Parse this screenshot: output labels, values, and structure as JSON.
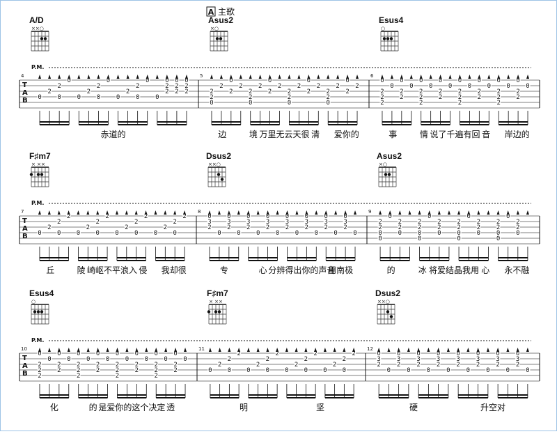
{
  "header": {
    "section": "A",
    "title": "主歌"
  },
  "tab_clef": [
    "T",
    "A",
    "B"
  ],
  "palm_mute": "P.M.",
  "systems": [
    {
      "chords": [
        {
          "name": "A/D",
          "top": "××○",
          "dots": [
            [
              3,
              2
            ],
            [
              4,
              2
            ]
          ]
        },
        {
          "name": "Asus2",
          "top": "×○",
          "dots": [
            [
              2,
              2
            ],
            [
              3,
              2
            ]
          ]
        },
        {
          "name": "Esus4",
          "top": "○",
          "dots": [
            [
              1,
              2
            ],
            [
              2,
              2
            ],
            [
              3,
              2
            ]
          ]
        }
      ],
      "measures": [
        {
          "number": "4",
          "strings": [
            "   0   0   0 000",
            "  2   2   2  222",
            " 2   2   2   222",
            "0 0 0 0 0 0 0   "
          ],
          "lyrics": [
            "赤道的"
          ]
        },
        {
          "number": "5",
          "strings": [
            "  0   0   0   0 ",
            " 2 2 2 2 2 2 2 2",
            "2 2 2 2 2 2 2 2 ",
            "2   2   2   2   ",
            "0   0   0   0   "
          ],
          "lyrics": [
            "边",
            "境",
            "万里无云天很",
            "清",
            "爱你的"
          ]
        },
        {
          "number": "6",
          "strings": [
            "0 0 0 0 0 0 0 0 ",
            " 0 0 0 0 0 0 0 0",
            "2 2 2 2 2 2 2 2 ",
            "2 2 2 2 2 2 2 2 ",
            "2   2   2   2   "
          ],
          "lyrics": [
            "事",
            "情",
            "说了千遍有回",
            "音",
            "岸边的"
          ]
        }
      ]
    },
    {
      "chords": [
        {
          "name": "F♯m7",
          "top": "× ××",
          "dots": [
            [
              0,
              2
            ],
            [
              2,
              2
            ],
            [
              3,
              2
            ]
          ]
        },
        {
          "name": "Dsus2",
          "top": "××○",
          "dots": [
            [
              3,
              2
            ],
            [
              4,
              3
            ]
          ]
        },
        {
          "name": "Asus2",
          "top": "×○",
          "dots": [
            [
              2,
              2
            ],
            [
              3,
              2
            ]
          ]
        }
      ],
      "measures": [
        {
          "number": "7",
          "strings": [
            "   2   2   2   2",
            "  2   2   2   2 ",
            " 2   2   2   2  ",
            "0 0 0 0 0 0 0 0 "
          ],
          "lyrics": [
            "丘",
            "陵",
            "崎岖不平浪入",
            "侵",
            "我却很"
          ]
        },
        {
          "number": "8",
          "strings": [
            "0 0 0 0 0 0 0 0 ",
            "3 3 3 3 3 3 3 3 ",
            "2 2 2 2 2 2 2 2 ",
            " 0 0 0 0 0 0 0 0"
          ],
          "lyrics": [
            "专",
            "心",
            "分辨得出你的声音",
            "用南极"
          ]
        },
        {
          "number": "9",
          "strings": [
            " 0   0   0   0  ",
            "2 2 2 2 2 2 2 2 ",
            "2 2 2 2 2 2 2 2 ",
            "0 0 0 0 0 0 0 0 ",
            "0   0   0   0   "
          ],
          "lyrics": [
            "的",
            "冰",
            "将爱结晶我用",
            "心",
            "永不融"
          ]
        }
      ]
    },
    {
      "chords": [
        {
          "name": "Esus4",
          "top": "○",
          "dots": [
            [
              1,
              2
            ],
            [
              2,
              2
            ],
            [
              3,
              2
            ]
          ]
        },
        {
          "name": "F♯m7",
          "top": "× ××",
          "dots": [
            [
              0,
              2
            ],
            [
              2,
              2
            ],
            [
              3,
              2
            ]
          ]
        },
        {
          "name": "Dsus2",
          "top": "××○",
          "dots": [
            [
              3,
              2
            ],
            [
              4,
              3
            ]
          ]
        }
      ],
      "measures": [
        {
          "number": "10",
          "strings": [
            "0 0 0 0 0 0 0 0 ",
            " 0 0 0 0 0 0 0 0",
            "2 2 2 2 2 2 2 2 ",
            "2 2 2 2 2 2 2 2 ",
            "2   2   2   2   "
          ],
          "lyrics": [
            "化",
            "的",
            "是爱你的这个决定",
            "透"
          ]
        },
        {
          "number": "11",
          "strings": [
            "   2   2   2   2",
            "  2   2   2   2 ",
            " 2   2   2   2  ",
            "0 0 0 0 0 0 0 0 "
          ],
          "lyrics": [
            "明",
            "坚"
          ]
        },
        {
          "number": "12",
          "strings": [
            "0 0 0 0 0 0 0 0 ",
            "3 3 3 3 3 3 3 3 ",
            "2 2 2 2 2 2 2 2 ",
            " 0 0 0 0 0 0 0 0"
          ],
          "lyrics": [
            "硬",
            "升空对"
          ]
        }
      ]
    }
  ]
}
